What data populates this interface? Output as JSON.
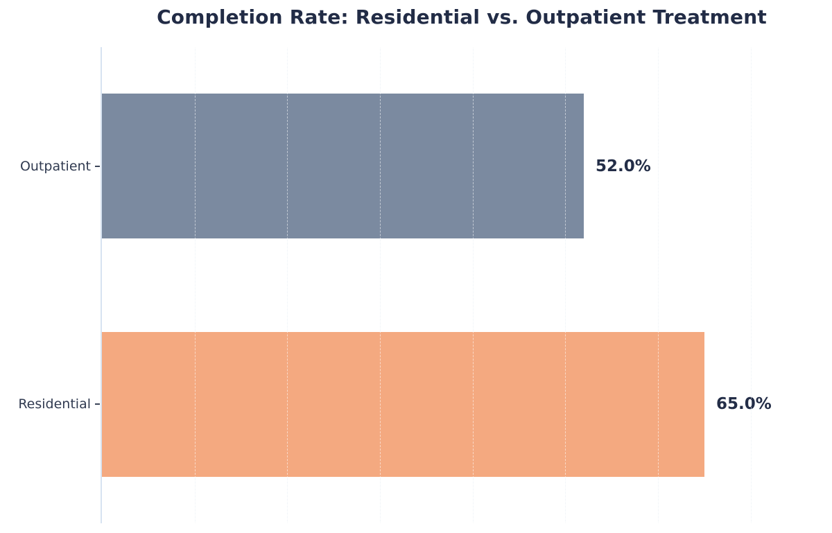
{
  "title": "Completion Rate: Residential vs. Outpatient Treatment",
  "colors": {
    "background": "#ffffff",
    "title_text": "#222c46",
    "category_label_text": "#303a50",
    "value_label_text": "#232d47",
    "axis_spine": "#d7e3f1",
    "gridline_faint": "#f1f5f9",
    "tick_mark": "#3a4458",
    "bar_outpatient": "#7b8aa0",
    "bar_residential": "#f4a980"
  },
  "chart_data": {
    "type": "bar",
    "orientation": "horizontal",
    "title": "Completion Rate: Residential vs. Outpatient Treatment",
    "categories": [
      "Outpatient",
      "Residential"
    ],
    "values": [
      52.0,
      65.0
    ],
    "value_labels": [
      "52.0%",
      "65.0%"
    ],
    "bar_colors": [
      "#7b8aa0",
      "#f4a980"
    ],
    "xlabel": "",
    "ylabel": "",
    "xlim": [
      0,
      76.3
    ],
    "grid": {
      "axis": "x",
      "interval": 10,
      "style": "dashed",
      "visible": true
    },
    "x_tick_labels_shown": false,
    "legend": "none"
  }
}
